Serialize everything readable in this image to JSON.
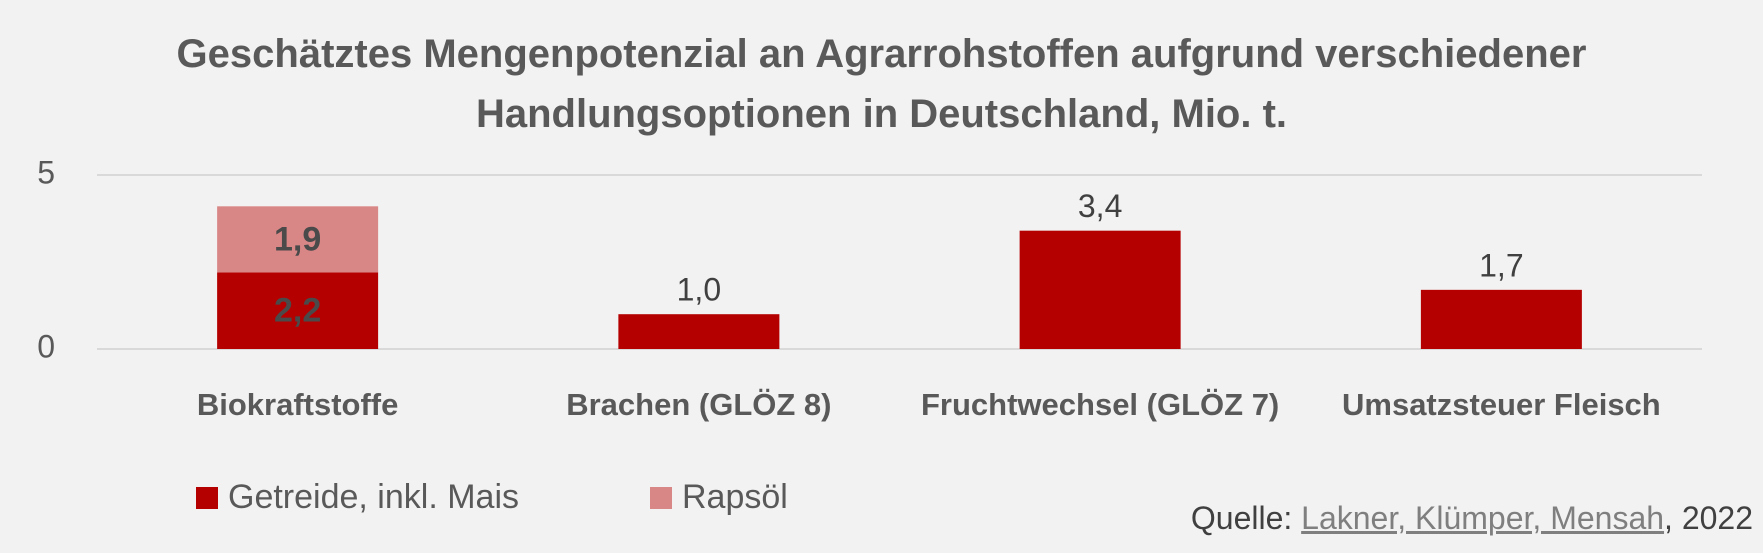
{
  "chart_data": {
    "type": "stacked-bar",
    "title": "Geschätztes Mengenpotenzial an Agrarrohstoffen aufgrund verschiedener Handlungsoptionen in Deutschland, Mio. t.",
    "categories": [
      "Biokraftstoffe",
      "Brachen (GLÖZ 8)",
      "Fruchtwechsel (GLÖZ 7)",
      "Umsatzsteuer Fleisch"
    ],
    "series": [
      {
        "name": "Getreide, inkl. Mais",
        "color": "#b50000",
        "values": [
          2.2,
          1.0,
          3.4,
          1.7
        ],
        "value_labels": [
          "2,2",
          "1,0",
          "3,4",
          "1,7"
        ]
      },
      {
        "name": "Rapsöl",
        "color": "#d98686",
        "values": [
          1.9,
          null,
          null,
          null
        ],
        "value_labels": [
          "1,9",
          null,
          null,
          null
        ]
      }
    ],
    "ylim": [
      0,
      5
    ],
    "yticks": [
      0,
      5
    ],
    "grid": true,
    "legend": "bottom-left",
    "source": {
      "prefix": "Quelle:",
      "link": "Lakner, Klümper, Mensah",
      "suffix": ", 2022"
    }
  }
}
